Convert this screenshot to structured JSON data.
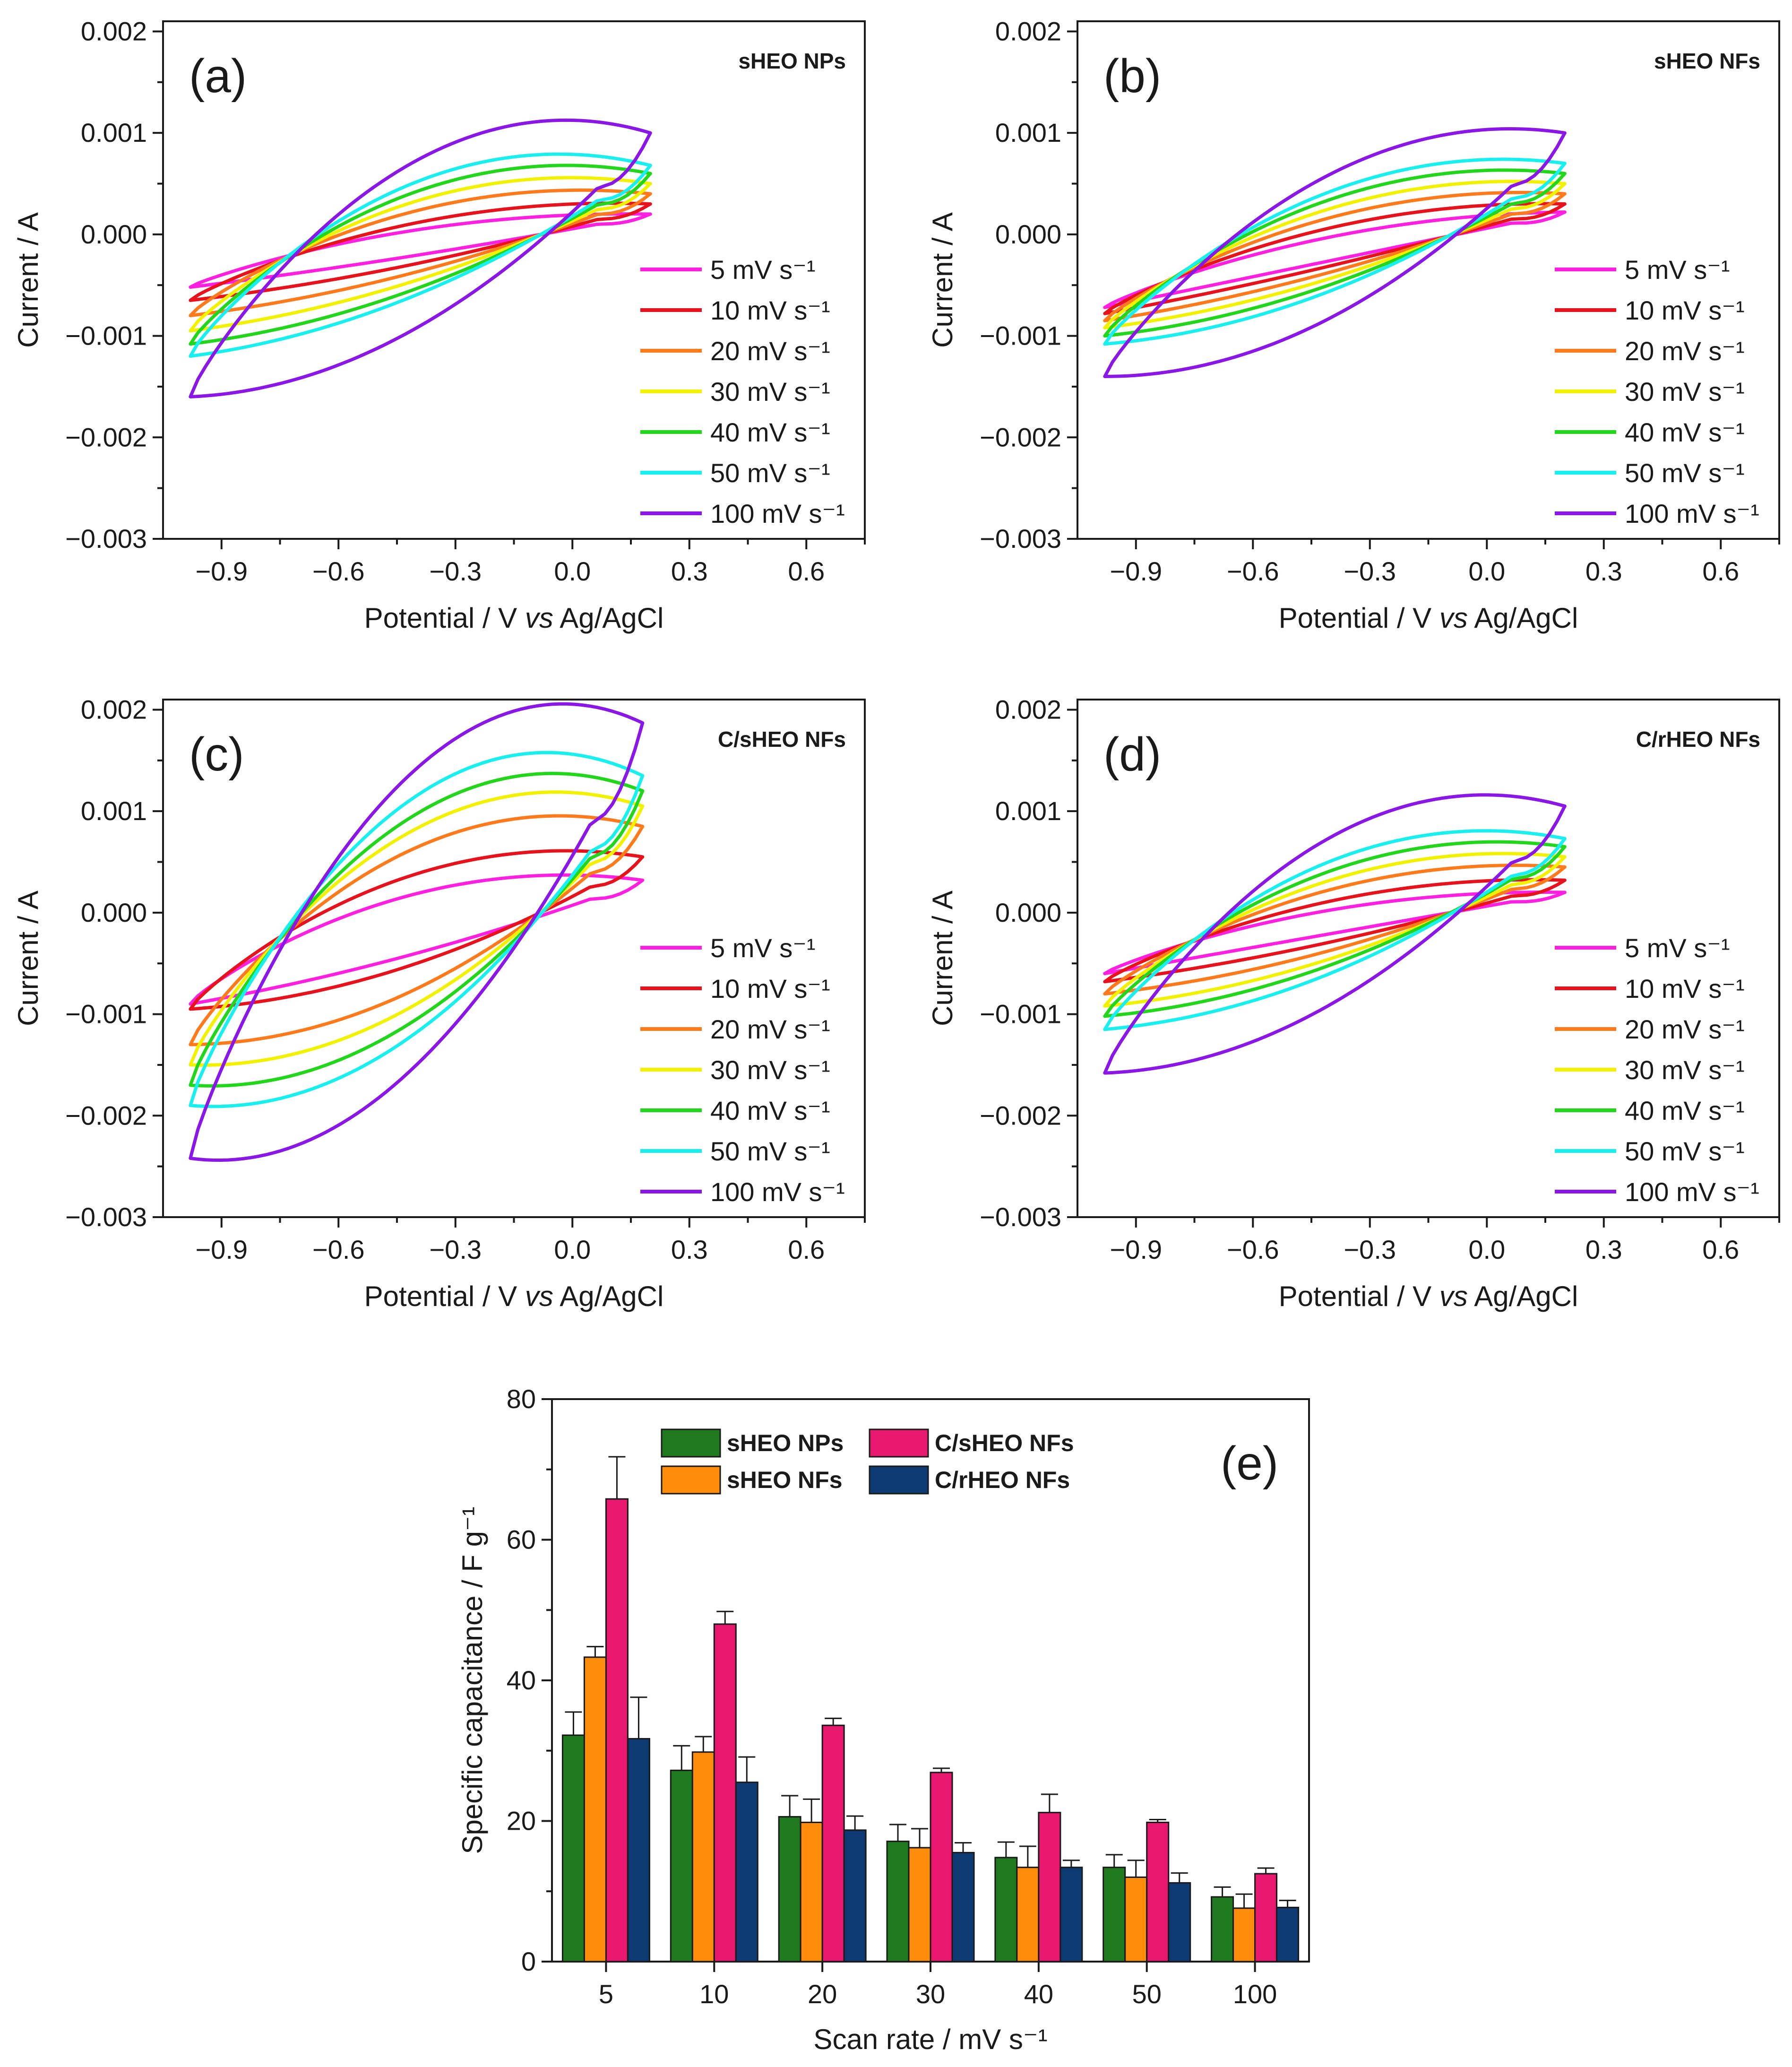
{
  "scan_rate_legend": [
    "5 mV s⁻¹",
    "10 mV s⁻¹",
    "20 mV s⁻¹",
    "30 mV s⁻¹",
    "40 mV s⁻¹",
    "50 mV s⁻¹",
    "100 mV s⁻¹"
  ],
  "colors": {
    "cv": [
      "#ff1fe0",
      "#e8121c",
      "#ff7a1a",
      "#f2f200",
      "#22d61c",
      "#18f0f0",
      "#8a16e8"
    ],
    "bars": [
      "#1f7a1f",
      "#ff8c0a",
      "#e8186e",
      "#0d3a73"
    ]
  },
  "chart_data": [
    {
      "id": "a",
      "type": "line",
      "panel_label": "(a)",
      "title": "sHEO NPs",
      "xlabel": "Potential / V",
      "xlabel_italic": "vs",
      "xlabel_tail": "Ag/AgCl",
      "ylabel": "Current / A",
      "xlim": [
        -1.05,
        0.75
      ],
      "ylim": [
        -0.003,
        0.0021
      ],
      "xticks": [
        -0.9,
        -0.6,
        -0.3,
        0.0,
        0.3,
        0.6
      ],
      "xtick_labels": [
        "−0.9",
        "−0.6",
        "−0.3",
        "0.0",
        "0.3",
        "0.6"
      ],
      "yticks": [
        0.002,
        0.001,
        0.0,
        -0.001,
        -0.002,
        -0.003
      ],
      "ytick_labels": [
        "0.002",
        "0.001",
        "0.000",
        "−0.001",
        "−0.002",
        "−0.003"
      ],
      "e_range": [
        -0.98,
        0.2
      ],
      "series": [
        {
          "name": "5 mV s⁻¹",
          "i_start": -0.00052,
          "i_end": 0.0002,
          "anodic_mid": 2e-05,
          "cathodic_mid": -0.0002
        },
        {
          "name": "10 mV s⁻¹",
          "i_start": -0.00065,
          "i_end": 0.0003,
          "anodic_mid": 8e-05,
          "cathodic_mid": -0.00028
        },
        {
          "name": "20 mV s⁻¹",
          "i_start": -0.0008,
          "i_end": 0.0004,
          "anodic_mid": 0.00018,
          "cathodic_mid": -0.00036
        },
        {
          "name": "30 mV s⁻¹",
          "i_start": -0.00095,
          "i_end": 0.0005,
          "anodic_mid": 0.00026,
          "cathodic_mid": -0.00044
        },
        {
          "name": "40 mV s⁻¹",
          "i_start": -0.00108,
          "i_end": 0.0006,
          "anodic_mid": 0.00034,
          "cathodic_mid": -0.00052
        },
        {
          "name": "50 mV s⁻¹",
          "i_start": -0.0012,
          "i_end": 0.00068,
          "anodic_mid": 0.00042,
          "cathodic_mid": -0.00058
        },
        {
          "name": "100 mV s⁻¹",
          "i_start": -0.0016,
          "i_end": 0.001,
          "anodic_mid": 0.0006,
          "cathodic_mid": -0.0009
        }
      ]
    },
    {
      "id": "b",
      "type": "line",
      "panel_label": "(b)",
      "title": "sHEO NFs",
      "xlabel": "Potential / V",
      "xlabel_italic": "vs",
      "xlabel_tail": "Ag/AgCl",
      "ylabel": "Current / A",
      "xlim": [
        -1.05,
        0.75
      ],
      "ylim": [
        -0.003,
        0.0021
      ],
      "xticks": [
        -0.9,
        -0.6,
        -0.3,
        0.0,
        0.3,
        0.6
      ],
      "xtick_labels": [
        "−0.9",
        "−0.6",
        "−0.3",
        "0.0",
        "0.3",
        "0.6"
      ],
      "yticks": [
        0.002,
        0.001,
        0.0,
        -0.001,
        -0.002,
        -0.003
      ],
      "ytick_labels": [
        "0.002",
        "0.001",
        "0.000",
        "−0.001",
        "−0.002",
        "−0.003"
      ],
      "e_range": [
        -0.98,
        0.2
      ],
      "series": [
        {
          "name": "5 mV s⁻¹",
          "i_start": -0.00072,
          "i_end": 0.00022,
          "anodic_mid": -5e-05,
          "cathodic_mid": -0.00025
        },
        {
          "name": "10 mV s⁻¹",
          "i_start": -0.00078,
          "i_end": 0.0003,
          "anodic_mid": 3e-05,
          "cathodic_mid": -0.0003
        },
        {
          "name": "20 mV s⁻¹",
          "i_start": -0.00085,
          "i_end": 0.0004,
          "anodic_mid": 0.00012,
          "cathodic_mid": -0.00036
        },
        {
          "name": "30 mV s⁻¹",
          "i_start": -0.00092,
          "i_end": 0.0005,
          "anodic_mid": 0.0002,
          "cathodic_mid": -0.00042
        },
        {
          "name": "40 mV s⁻¹",
          "i_start": -0.001,
          "i_end": 0.0006,
          "anodic_mid": 0.00028,
          "cathodic_mid": -0.00048
        },
        {
          "name": "50 mV s⁻¹",
          "i_start": -0.00108,
          "i_end": 0.0007,
          "anodic_mid": 0.00035,
          "cathodic_mid": -0.00054
        },
        {
          "name": "100 mV s⁻¹",
          "i_start": -0.0014,
          "i_end": 0.001,
          "anodic_mid": 0.0005,
          "cathodic_mid": -0.0008
        }
      ]
    },
    {
      "id": "c",
      "type": "line",
      "panel_label": "(c)",
      "title": "C/sHEO NFs",
      "xlabel": "Potential / V",
      "xlabel_italic": "vs",
      "xlabel_tail": "Ag/AgCl",
      "ylabel": "Current / A",
      "xlim": [
        -1.05,
        0.75
      ],
      "ylim": [
        -0.003,
        0.0021
      ],
      "xticks": [
        -0.9,
        -0.6,
        -0.3,
        0.0,
        0.3,
        0.6
      ],
      "xtick_labels": [
        "−0.9",
        "−0.6",
        "−0.3",
        "0.0",
        "0.3",
        "0.6"
      ],
      "yticks": [
        0.002,
        0.001,
        0.0,
        -0.001,
        -0.002,
        -0.003
      ],
      "ytick_labels": [
        "0.002",
        "0.001",
        "0.000",
        "−0.001",
        "−0.002",
        "−0.003"
      ],
      "e_range": [
        -0.98,
        0.18
      ],
      "series": [
        {
          "name": "5 mV s⁻¹",
          "i_start": -0.0009,
          "i_end": 0.00032,
          "anodic_mid": 0.00012,
          "cathodic_mid": -0.0004
        },
        {
          "name": "10 mV s⁻¹",
          "i_start": -0.00095,
          "i_end": 0.00055,
          "anodic_mid": 0.0003,
          "cathodic_mid": -0.0005
        },
        {
          "name": "20 mV s⁻¹",
          "i_start": -0.0013,
          "i_end": 0.00085,
          "anodic_mid": 0.00052,
          "cathodic_mid": -0.00075
        },
        {
          "name": "30 mV s⁻¹",
          "i_start": -0.0015,
          "i_end": 0.00105,
          "anodic_mid": 0.00068,
          "cathodic_mid": -0.0009
        },
        {
          "name": "40 mV s⁻¹",
          "i_start": -0.0017,
          "i_end": 0.0012,
          "anodic_mid": 0.0008,
          "cathodic_mid": -0.00105
        },
        {
          "name": "50 mV s⁻¹",
          "i_start": -0.0019,
          "i_end": 0.00135,
          "anodic_mid": 0.00095,
          "cathodic_mid": -0.00118
        },
        {
          "name": "100 mV s⁻¹",
          "i_start": -0.00242,
          "i_end": 0.00187,
          "anodic_mid": 0.00118,
          "cathodic_mid": -0.0015
        }
      ]
    },
    {
      "id": "d",
      "type": "line",
      "panel_label": "(d)",
      "title": "C/rHEO NFs",
      "xlabel": "Potential / V",
      "xlabel_italic": "vs",
      "xlabel_tail": "Ag/AgCl",
      "ylabel": "Current / A",
      "xlim": [
        -1.05,
        0.75
      ],
      "ylim": [
        -0.003,
        0.0021
      ],
      "xticks": [
        -0.9,
        -0.6,
        -0.3,
        0.0,
        0.3,
        0.6
      ],
      "xtick_labels": [
        "−0.9",
        "−0.6",
        "−0.3",
        "0.0",
        "0.3",
        "0.6"
      ],
      "yticks": [
        0.002,
        0.001,
        0.0,
        -0.001,
        -0.002,
        -0.003
      ],
      "ytick_labels": [
        "0.002",
        "0.001",
        "0.000",
        "−0.001",
        "−0.002",
        "−0.003"
      ],
      "e_range": [
        -0.98,
        0.2
      ],
      "series": [
        {
          "name": "5 mV s⁻¹",
          "i_start": -0.0006,
          "i_end": 0.0002,
          "anodic_mid": 0.0,
          "cathodic_mid": -0.0002
        },
        {
          "name": "10 mV s⁻¹",
          "i_start": -0.00068,
          "i_end": 0.00032,
          "anodic_mid": 8e-05,
          "cathodic_mid": -0.00028
        },
        {
          "name": "20 mV s⁻¹",
          "i_start": -0.0008,
          "i_end": 0.00045,
          "anodic_mid": 0.00018,
          "cathodic_mid": -0.00036
        },
        {
          "name": "30 mV s⁻¹",
          "i_start": -0.00092,
          "i_end": 0.00055,
          "anodic_mid": 0.00026,
          "cathodic_mid": -0.00044
        },
        {
          "name": "40 mV s⁻¹",
          "i_start": -0.00102,
          "i_end": 0.00065,
          "anodic_mid": 0.00034,
          "cathodic_mid": -0.0005
        },
        {
          "name": "50 mV s⁻¹",
          "i_start": -0.00115,
          "i_end": 0.00073,
          "anodic_mid": 0.00042,
          "cathodic_mid": -0.00058
        },
        {
          "name": "100 mV s⁻¹",
          "i_start": -0.00158,
          "i_end": 0.00105,
          "anodic_mid": 0.00062,
          "cathodic_mid": -0.00088
        }
      ]
    },
    {
      "id": "e",
      "type": "bar",
      "panel_label": "(e)",
      "xlabel": "Scan rate / mV s⁻¹",
      "ylabel": "Specific capacitance / F g⁻¹",
      "categories": [
        "5",
        "10",
        "20",
        "30",
        "40",
        "50",
        "100"
      ],
      "ylim": [
        0,
        80
      ],
      "yticks": [
        0,
        20,
        40,
        60,
        80
      ],
      "ytick_labels": [
        "0",
        "20",
        "40",
        "60",
        "80"
      ],
      "series": [
        {
          "name": "sHEO NPs",
          "values": [
            32.2,
            27.2,
            20.6,
            17.1,
            14.8,
            13.4,
            9.2
          ],
          "errors": [
            3.3,
            3.5,
            3.0,
            2.4,
            2.2,
            1.8,
            1.4
          ]
        },
        {
          "name": "sHEO NFs",
          "values": [
            43.3,
            29.8,
            19.8,
            16.2,
            13.4,
            12.0,
            7.6
          ],
          "errors": [
            1.5,
            2.2,
            3.3,
            2.7,
            3.0,
            2.4,
            2.0
          ]
        },
        {
          "name": "C/sHEO NFs",
          "values": [
            65.8,
            48.0,
            33.6,
            26.9,
            21.2,
            19.8,
            12.5
          ],
          "errors": [
            6.0,
            1.8,
            1.0,
            0.6,
            2.6,
            0.4,
            0.8
          ]
        },
        {
          "name": "C/rHEO NFs",
          "values": [
            31.7,
            25.5,
            18.7,
            15.5,
            13.4,
            11.2,
            7.7
          ],
          "errors": [
            5.9,
            3.6,
            2.0,
            1.4,
            1.0,
            1.4,
            1.0
          ]
        }
      ]
    }
  ]
}
